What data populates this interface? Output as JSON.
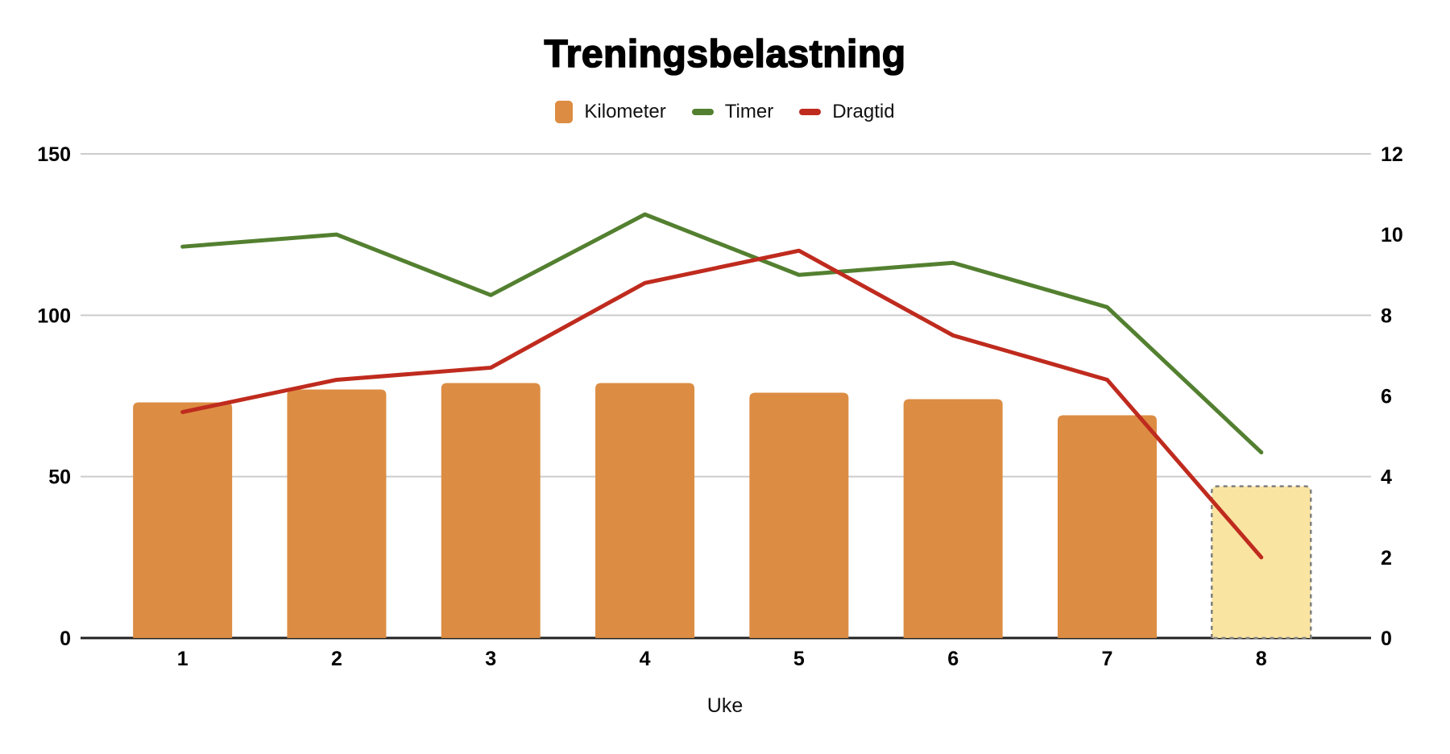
{
  "title": "Treningsbelastning",
  "legend": {
    "items": [
      {
        "label": "Kilometer",
        "color": "#DC8D43",
        "swatch": "square"
      },
      {
        "label": "Timer",
        "color": "#538030",
        "swatch": "dash"
      },
      {
        "label": "Dragtid",
        "color": "#BF2B1E",
        "swatch": "dash"
      }
    ]
  },
  "chart_data": {
    "type": "combo-bar-line",
    "title": "Treningsbelastning",
    "xlabel": "Uke",
    "categories": [
      "1",
      "2",
      "3",
      "4",
      "5",
      "6",
      "7",
      "8"
    ],
    "series": [
      {
        "name": "Kilometer",
        "type": "bar",
        "axis": "left",
        "color": "#DC8D43",
        "values": [
          73,
          77,
          79,
          79,
          76,
          74,
          69,
          47
        ],
        "highlight_last_bar": true,
        "highlight_fill": "#FAE4A1",
        "highlight_border": "#7F7F7F"
      },
      {
        "name": "Timer",
        "type": "line",
        "axis": "right",
        "color": "#538030",
        "values": [
          9.7,
          10,
          8.5,
          10.5,
          9,
          9.3,
          8.2,
          4.6
        ]
      },
      {
        "name": "Dragtid",
        "type": "line",
        "axis": "right",
        "color": "#BF2B1E",
        "values": [
          5.6,
          6.4,
          6.7,
          8.8,
          9.6,
          7.5,
          6.4,
          2
        ]
      }
    ],
    "left_axis": {
      "range": [
        0,
        150
      ],
      "ticks": [
        0,
        50,
        100,
        150
      ]
    },
    "right_axis": {
      "range": [
        0,
        12
      ],
      "ticks": [
        0,
        2,
        4,
        6,
        8,
        10,
        12
      ]
    },
    "gridlines": {
      "at_left_ticks": [
        50,
        100,
        150
      ],
      "color": "#CCCCCC"
    },
    "baseline_color": "#212121",
    "tick_label_color": "#000000",
    "legend_position": "top"
  }
}
